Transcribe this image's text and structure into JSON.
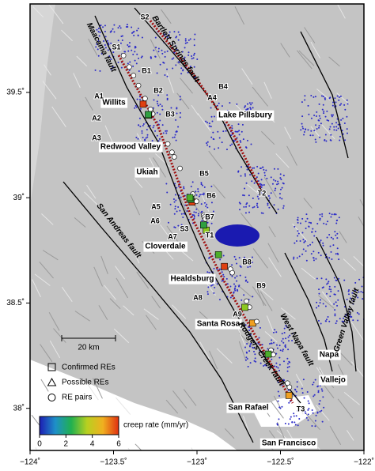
{
  "map": {
    "xlim": [
      -124,
      -122
    ],
    "ylim": [
      37.8,
      39.92
    ],
    "xticks": [
      {
        "value": -124,
        "label": "−124˚"
      },
      {
        "value": -123.5,
        "label": "−123.5˚"
      },
      {
        "value": -123,
        "label": "−123˚"
      },
      {
        "value": -122.5,
        "label": "−122.5˚"
      },
      {
        "value": -122,
        "label": "−122˚"
      }
    ],
    "yticks": [
      {
        "value": 38,
        "label": "38˚"
      },
      {
        "value": 38.5,
        "label": "38.5˚"
      },
      {
        "value": 39,
        "label": "39˚"
      },
      {
        "value": 39.5,
        "label": "39.5˚"
      }
    ],
    "places": [
      "Willits",
      "Lake Pillsbury",
      "Redwood Valley",
      "Ukiah",
      "Cloverdale",
      "Healdsburg",
      "Santa Rosa",
      "Napa",
      "Vallejo",
      "San Rafael",
      "San Francisco"
    ],
    "faults": [
      "Maacama fault",
      "Bartlett Springs fault",
      "San Andreas fault",
      "Rodgers Creek fault",
      "West Napa fault",
      "Green Valley fault"
    ],
    "sites": [
      "S1",
      "S2",
      "S3",
      "T1",
      "T2",
      "T3",
      "B1",
      "B2",
      "B3",
      "B4",
      "B5",
      "B6",
      "B7",
      "B8",
      "B9",
      "A1",
      "A2",
      "A3",
      "A4",
      "A5",
      "A6",
      "A7",
      "A8",
      "A9"
    ],
    "legend": {
      "items": [
        "Confirmed REs",
        "Possible REs",
        "RE pairs"
      ],
      "scale": "20 km"
    },
    "colorbar": {
      "title": "creep rate (mm/yr)",
      "lim": [
        0,
        6
      ],
      "ticks": [
        0,
        2,
        4,
        6
      ]
    }
  }
}
